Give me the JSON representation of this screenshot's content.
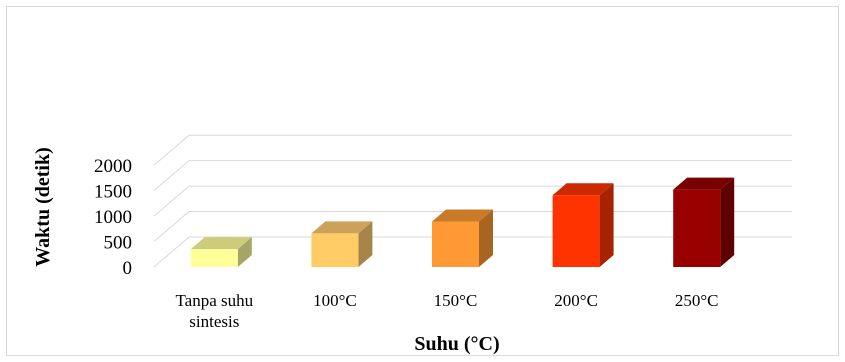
{
  "chart_data": {
    "type": "bar",
    "categories": [
      "Tanpa suhu sintesis",
      "100°C",
      "150°C",
      "200°C",
      "250°C"
    ],
    "category_lines": [
      [
        "Tanpa suhu",
        "sintesis"
      ],
      [
        "100°C"
      ],
      [
        "150°C"
      ],
      [
        "200°C"
      ],
      [
        "250°C"
      ]
    ],
    "values": [
      350,
      660,
      895,
      1410,
      1520
    ],
    "xlabel": "Suhu (°C)",
    "ylabel": "Waktu (detik)",
    "ylim": [
      0,
      2000
    ],
    "yticks": [
      "0",
      "500",
      "1000",
      "1500",
      "2000"
    ],
    "grid": true,
    "three_d": true,
    "bar_colors": [
      {
        "front": "#ffff99",
        "side": "#a5a566",
        "top": "#cccc7a"
      },
      {
        "front": "#ffcc66",
        "side": "#a6844a",
        "top": "#cca25a"
      },
      {
        "front": "#ff9933",
        "side": "#a86422",
        "top": "#c97b2a"
      },
      {
        "front": "#ff3300",
        "side": "#a62200",
        "top": "#cc2900"
      },
      {
        "front": "#990000",
        "side": "#5e0000",
        "top": "#7a0000"
      }
    ]
  }
}
